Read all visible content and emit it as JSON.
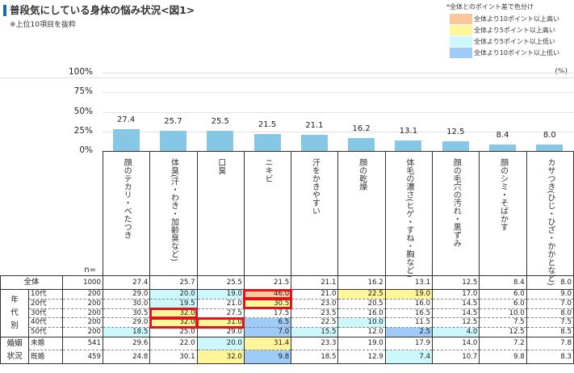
{
  "title": "普段気にしている身体の悩み状況<図1>",
  "subtitle": "※上位10項目を抜粋",
  "legend": {
    "note": "*全体とのポイント差で色分け",
    "items": [
      {
        "label": "全体より10ポイント以上高い",
        "color": "#fcc69b"
      },
      {
        "label": "全体より5ポイント以上高い",
        "color": "#fff599"
      },
      {
        "label": "全体より5ポイント以上低い",
        "color": "#ccf8fb"
      },
      {
        "label": "全体より10ポイント以上低い",
        "color": "#9ecbf8"
      }
    ]
  },
  "unit": "(%)",
  "y_ticks": [
    "100%",
    "75%",
    "50%",
    "25%",
    "0%"
  ],
  "n_label": "n=",
  "chart_data": {
    "type": "bar",
    "title": "普段気にしている身体の悩み状況<図1>",
    "categories": [
      "顔のテカリ・べたつき",
      "体臭(汗・わき・加齢臭など)",
      "口臭",
      "ニキビ",
      "汗をかきやすい",
      "顔の乾燥",
      "体毛の濃さ(ヒゲ・すね・胸など)",
      "顔の毛穴の汚れ・黒ずみ",
      "顔のシミ・そばかす",
      "カサつき(ひじ・ひざ・かかとなど)"
    ],
    "values": [
      27.4,
      25.7,
      25.5,
      21.5,
      21.1,
      16.2,
      13.1,
      12.5,
      8.4,
      8.0
    ],
    "value_labels": [
      "27.4",
      "25.7",
      "25.5",
      "21.5",
      "21.1",
      "16.2",
      "13.1",
      "12.5",
      "8.4",
      "8.0"
    ],
    "ylabel": "%",
    "ylim": [
      0,
      100
    ],
    "grid": true,
    "bar_color": "#87c7e6",
    "table": {
      "rows": [
        {
          "group": "全体",
          "sub": "",
          "n": "1000",
          "values": [
            "27.4",
            "25.7",
            "25.5",
            "21.5",
            "21.1",
            "16.2",
            "13.1",
            "12.5",
            "8.4",
            "8.0"
          ]
        },
        {
          "group": "年代別",
          "sub": "10代",
          "n": "200",
          "values": [
            "29.0",
            "20.0",
            "19.0",
            "46.0",
            "21.0",
            "22.5",
            "19.0",
            "17.0",
            "6.0",
            "9.0"
          ]
        },
        {
          "group": "年代別",
          "sub": "20代",
          "n": "200",
          "values": [
            "30.0",
            "19.5",
            "21.0",
            "30.5",
            "23.0",
            "20.5",
            "16.0",
            "14.5",
            "6.0",
            "7.0"
          ]
        },
        {
          "group": "年代別",
          "sub": "30代",
          "n": "200",
          "values": [
            "30.5",
            "32.0",
            "27.5",
            "17.5",
            "23.5",
            "16.0",
            "16.5",
            "14.5",
            "10.0",
            "8.0"
          ]
        },
        {
          "group": "年代別",
          "sub": "40代",
          "n": "200",
          "values": [
            "29.0",
            "32.0",
            "31.0",
            "6.5",
            "22.5",
            "10.0",
            "11.5",
            "12.5",
            "7.5",
            "7.5"
          ]
        },
        {
          "group": "年代別",
          "sub": "50代",
          "n": "200",
          "values": [
            "18.5",
            "25.0",
            "29.0",
            "7.0",
            "15.5",
            "12.0",
            "2.5",
            "4.0",
            "12.5",
            "8.5"
          ]
        },
        {
          "group": "婚姻状況",
          "sub": "未婚",
          "n": "541",
          "values": [
            "29.6",
            "22.0",
            "20.0",
            "31.4",
            "23.3",
            "19.0",
            "17.9",
            "14.0",
            "7.2",
            "7.8"
          ]
        },
        {
          "group": "婚姻状況",
          "sub": "既婚",
          "n": "459",
          "values": [
            "24.8",
            "30.1",
            "32.0",
            "9.8",
            "18.5",
            "12.9",
            "7.4",
            "10.7",
            "9.8",
            "8.3"
          ]
        }
      ]
    }
  },
  "table_groups": {
    "total": "全体",
    "age": "年\n代\n別",
    "marital": "婚姻\n状況"
  }
}
